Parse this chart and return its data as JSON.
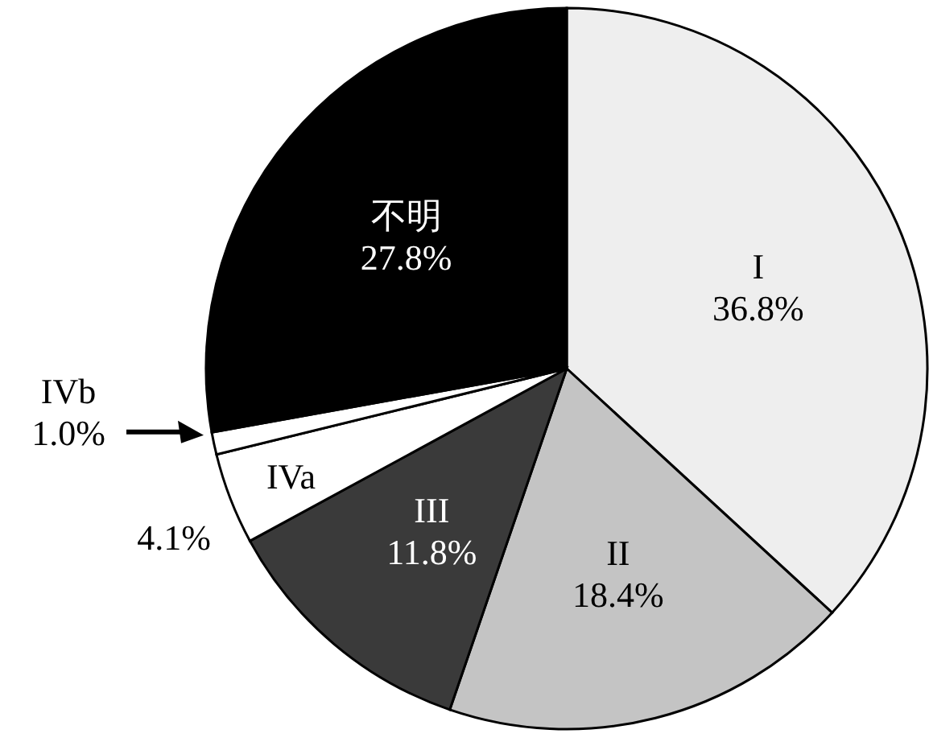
{
  "chart_data": {
    "type": "pie",
    "categories": [
      "I",
      "II",
      "III",
      "IVa",
      "IVb",
      "不明"
    ],
    "values": [
      36.8,
      18.4,
      11.8,
      4.1,
      1.0,
      27.8
    ],
    "value_labels": [
      "36.8%",
      "18.4%",
      "11.8%",
      "4.1%",
      "1.0%",
      "27.8%"
    ],
    "colors": [
      "#eeeeee",
      "#c4c4c4",
      "#3a3a3a",
      "#ffffff",
      "#ffffff",
      "#000000"
    ]
  }
}
